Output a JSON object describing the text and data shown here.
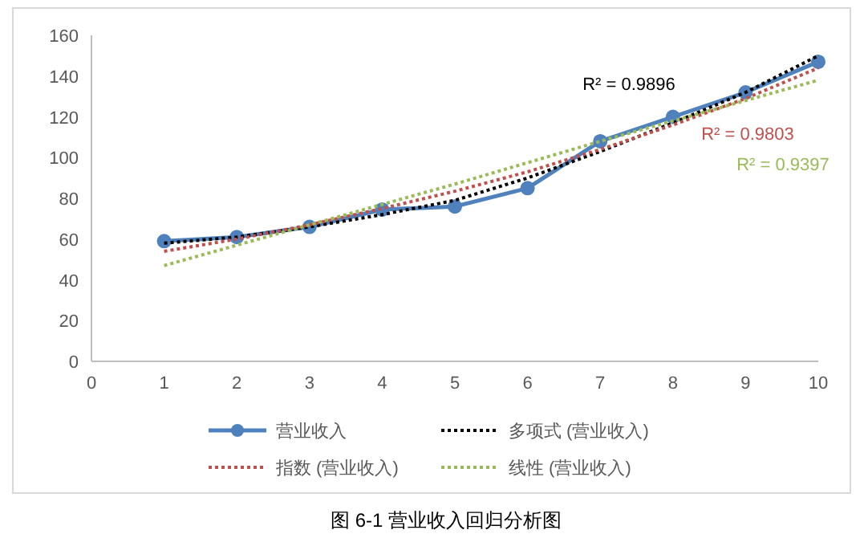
{
  "chart_data": {
    "type": "line",
    "title": "图 6-1 营业收入回归分析图",
    "x": [
      1,
      2,
      3,
      4,
      5,
      6,
      7,
      8,
      9,
      10
    ],
    "xlim": [
      0,
      10
    ],
    "xticks": [
      0,
      1,
      2,
      3,
      4,
      5,
      6,
      7,
      8,
      9,
      10
    ],
    "ylim": [
      0,
      160
    ],
    "yticks": [
      0,
      20,
      40,
      60,
      80,
      100,
      120,
      140,
      160
    ],
    "grid": false,
    "legend": "bottom",
    "series": [
      {
        "name": "营业收入",
        "color": "#4f81bd",
        "values": [
          59,
          61,
          66,
          74.5,
          76,
          85,
          108,
          120,
          132,
          147
        ],
        "marker": "circle",
        "line_style": "solid"
      },
      {
        "name": "多项式 (营业收入)",
        "color": "#000000",
        "values": [
          58,
          61,
          66,
          72,
          79,
          90,
          103,
          117,
          132,
          150
        ],
        "marker": "none",
        "line_style": "dotted"
      },
      {
        "name": "指数 (营业收入)",
        "color": "#c0504d",
        "values": [
          54,
          60,
          67,
          75,
          83.5,
          93,
          104,
          116,
          129,
          144
        ],
        "marker": "none",
        "line_style": "dotted"
      },
      {
        "name": "线性 (营业收入)",
        "color": "#9bbb59",
        "values": [
          47,
          57,
          67,
          77,
          87,
          97.5,
          108,
          118,
          128,
          138
        ],
        "marker": "none",
        "line_style": "dotted"
      }
    ],
    "annotations": [
      "R² = 0.9896",
      "R² = 0.9803",
      "R² = 0.9397"
    ]
  }
}
